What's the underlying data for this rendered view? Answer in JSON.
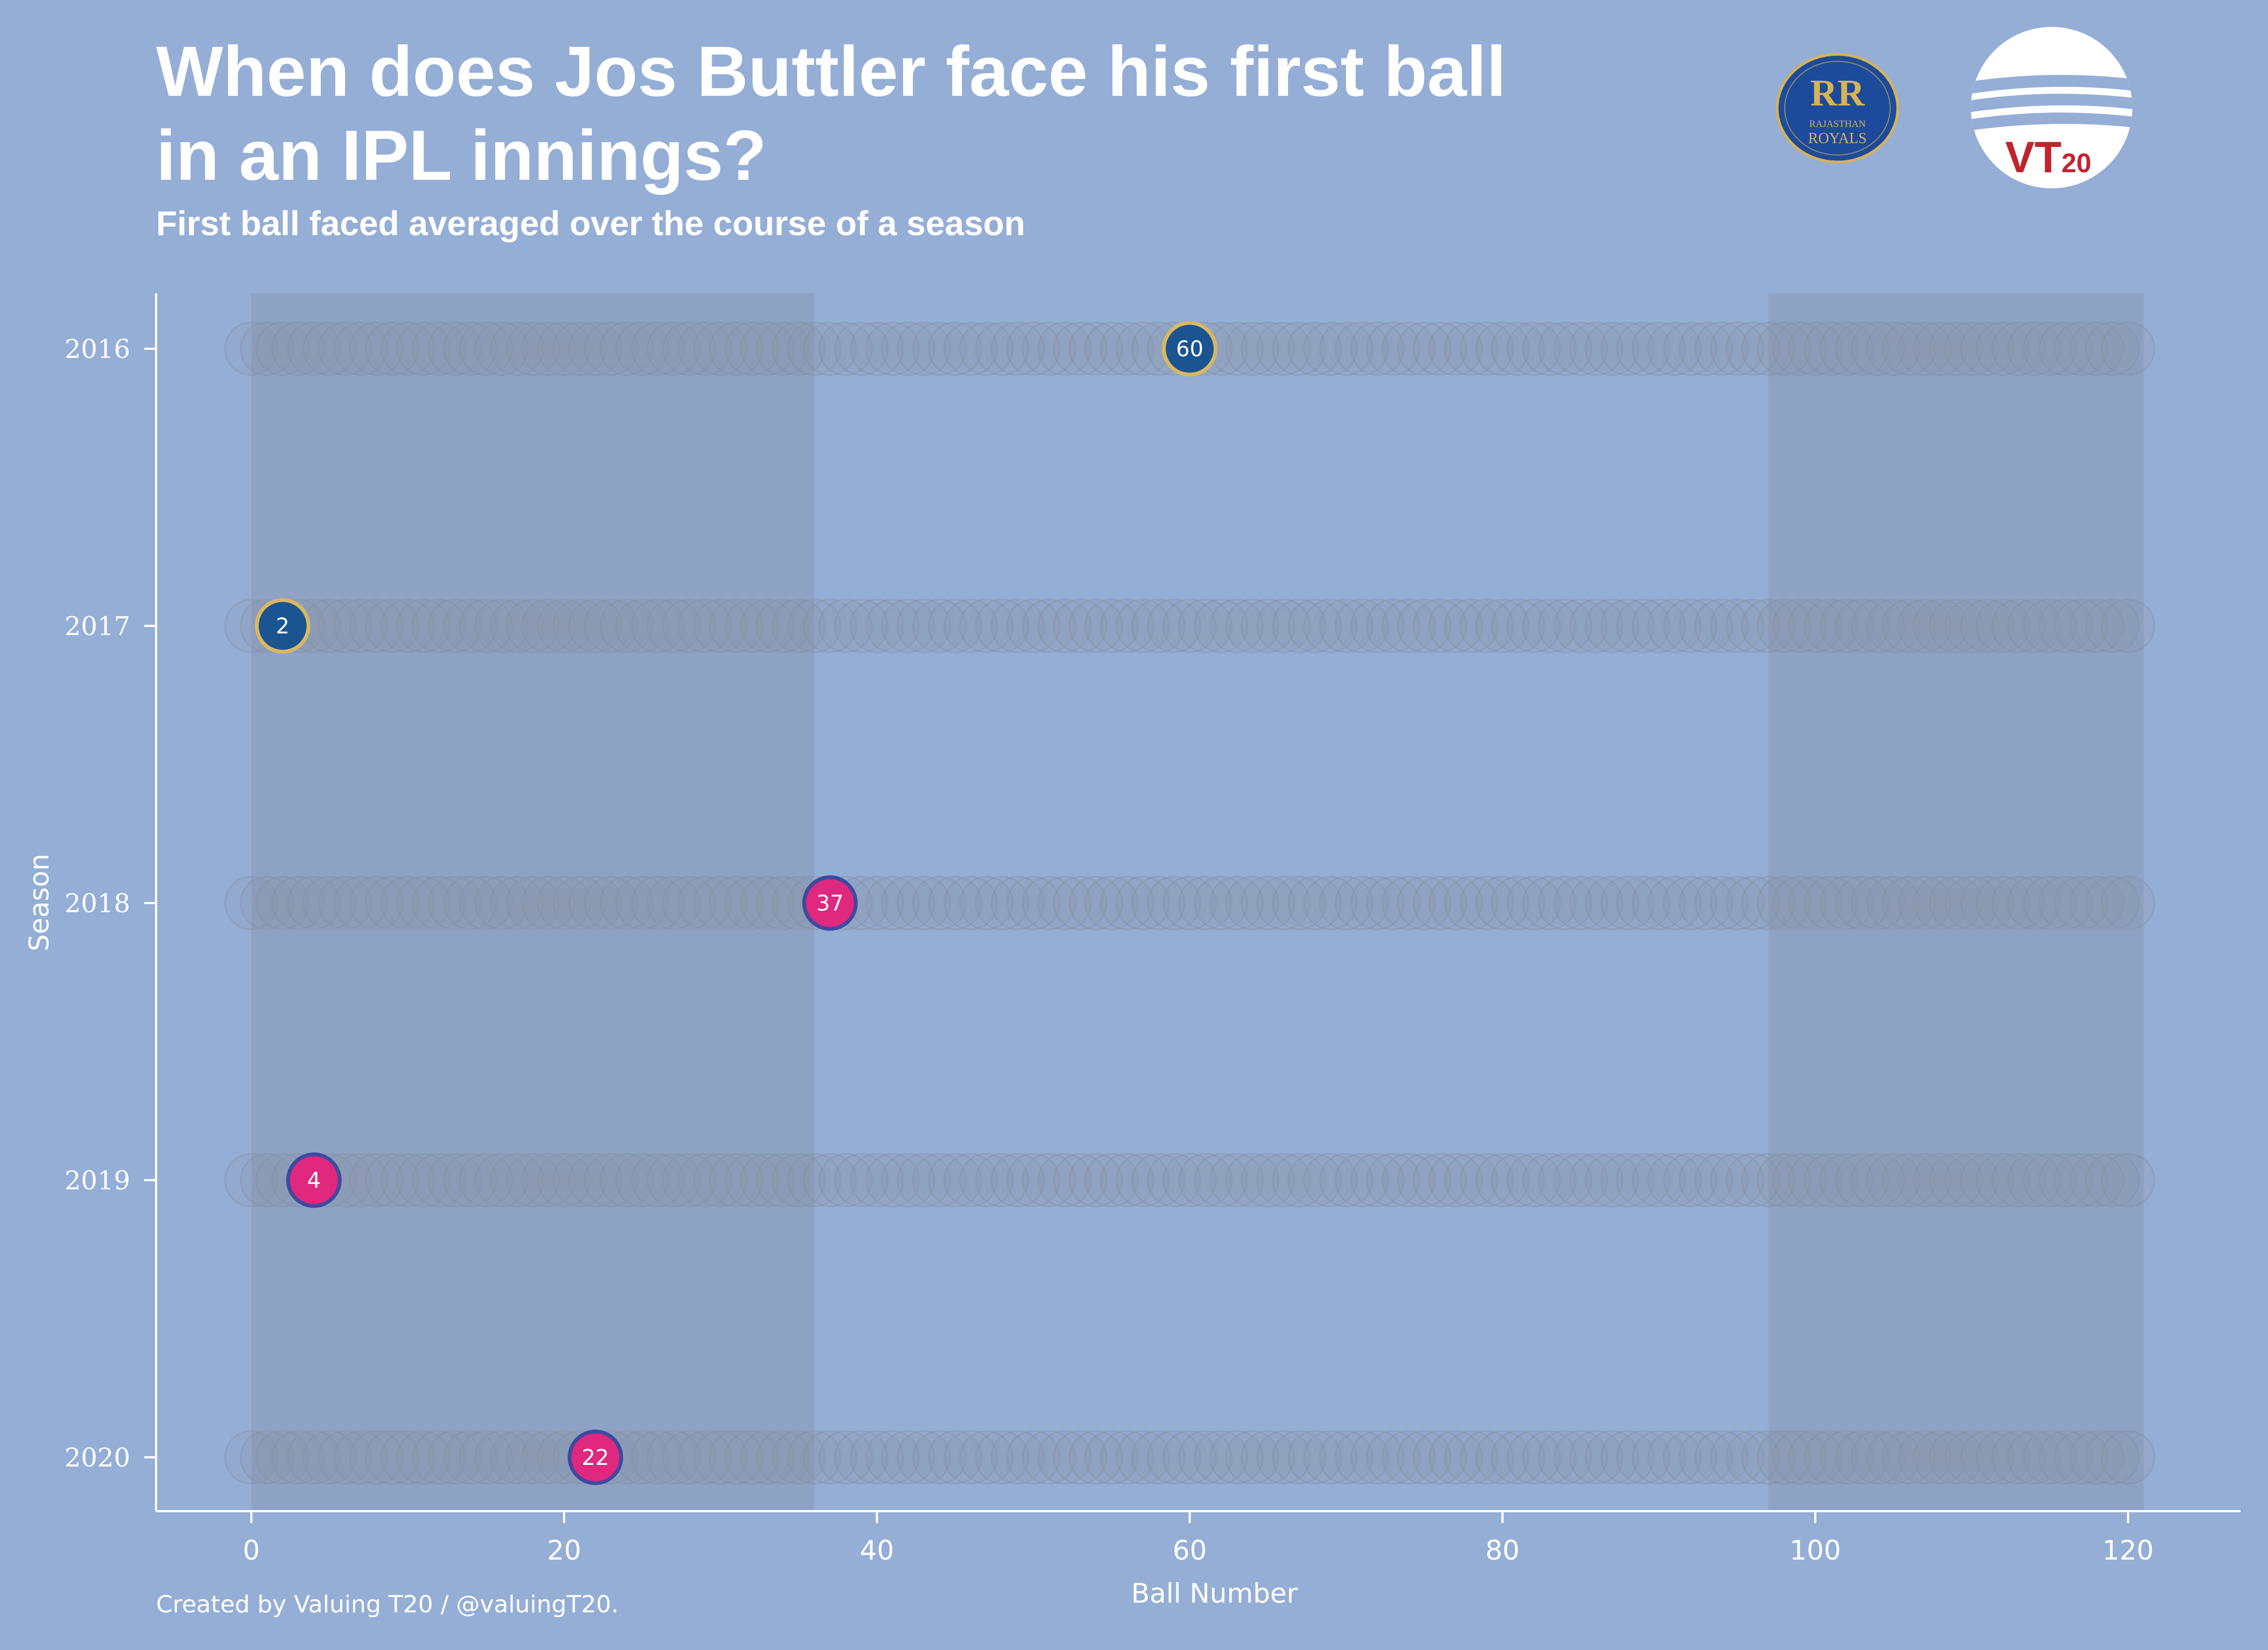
{
  "header": {
    "title_line1": "When does Jos Buttler face his first ball",
    "title_line2": "in an IPL innings?",
    "subtitle": "First ball faced averaged over the course of a season"
  },
  "footer": {
    "credit": "Created by Valuing T20 / @valuingT20."
  },
  "logos": {
    "team": {
      "icon": "rajasthan-royals-logo",
      "text_line1": "RAJASTHAN",
      "text_line2": "ROYALS"
    },
    "brand": {
      "icon": "valuing-t20-logo",
      "text": "VT",
      "subtext": "20"
    }
  },
  "colors": {
    "background": "#95aed6",
    "shade": "#8ea2c4",
    "track": "#8a93a6",
    "navy": "#1b5591",
    "pink": "#e0287f",
    "gold": "#d9b860",
    "purple": "#3d4aa0",
    "brand_red": "#c0242e"
  },
  "chart_data": {
    "type": "scatter",
    "title": "When does Jos Buttler face his first ball in an IPL innings?",
    "subtitle": "First ball faced averaged over the course of a season",
    "xlabel": "Ball Number",
    "ylabel": "Season",
    "xlim": [
      -6,
      127
    ],
    "xticks": [
      0,
      20,
      40,
      60,
      80,
      100,
      120
    ],
    "categories": [
      "2016",
      "2017",
      "2018",
      "2019",
      "2020"
    ],
    "track_range": [
      0,
      120
    ],
    "shaded_ranges": [
      [
        0,
        36
      ],
      [
        97,
        121
      ]
    ],
    "points": [
      {
        "season": "2016",
        "value": 60,
        "color": "navy"
      },
      {
        "season": "2017",
        "value": 2,
        "color": "navy"
      },
      {
        "season": "2018",
        "value": 37,
        "color": "pink"
      },
      {
        "season": "2019",
        "value": 4,
        "color": "pink"
      },
      {
        "season": "2020",
        "value": 22,
        "color": "pink"
      }
    ],
    "grid": false,
    "legend": "none"
  }
}
